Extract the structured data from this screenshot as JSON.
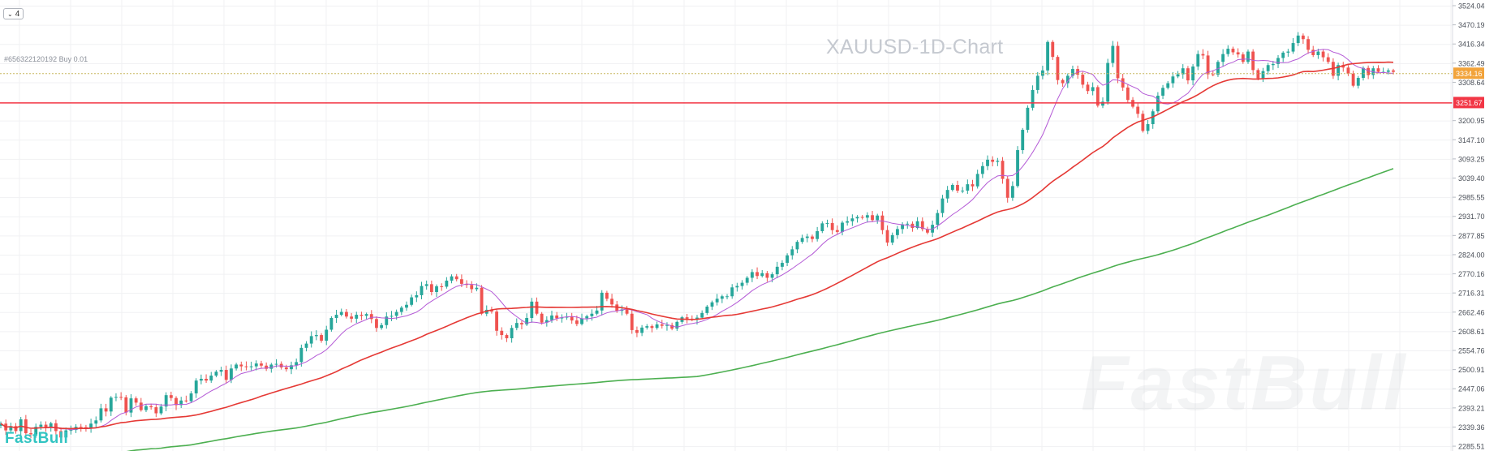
{
  "toolbar": {
    "collapse_count": "4",
    "collapse_icon": "chevron-down-icon"
  },
  "order_line": {
    "label": "#656322120192 Buy 0.01",
    "price": 3334.16,
    "price_label": "3334.16",
    "color": "#f2a33a"
  },
  "alert_line": {
    "price": 3251.67,
    "price_label": "3251.67",
    "color": "#f23645"
  },
  "branding": {
    "logo_text": "FastBull",
    "watermark_text": "FastBull",
    "logo_color": "#32c4c2"
  },
  "chart_data": {
    "type": "candlestick",
    "title": "XAUUSD-1D-Chart",
    "y_axis": {
      "side": "right",
      "ticks": [
        3524.04,
        3470.19,
        3416.34,
        3362.49,
        3308.64,
        3200.95,
        3147.1,
        3093.25,
        3039.4,
        2985.55,
        2931.7,
        2877.85,
        2824.0,
        2770.16,
        2716.31,
        2662.46,
        2608.61,
        2554.76,
        2500.91,
        2447.06,
        2393.21,
        2339.36,
        2285.51
      ],
      "tick_labels": [
        "3524.04",
        "3470.19",
        "3416.34",
        "3362.49",
        "3308.64",
        "3200.95",
        "3147.10",
        "3093.25",
        "3039.40",
        "2985.55",
        "2931.70",
        "2877.85",
        "2824.00",
        "2770.16",
        "2716.31",
        "2662.46",
        "2608.61",
        "2554.76",
        "2500.91",
        "2447.06",
        "2393.21",
        "2339.36",
        "2285.51"
      ],
      "range": [
        2272,
        3540
      ]
    },
    "grid": true,
    "up_color": "#26a69a",
    "down_color": "#ef5350",
    "candle_closes": [
      2349,
      2330,
      2342,
      2328,
      2361,
      2322,
      2319,
      2340,
      2346,
      2339,
      2350,
      2328,
      2310,
      2330,
      2331,
      2340,
      2339,
      2335,
      2349,
      2358,
      2392,
      2383,
      2422,
      2424,
      2423,
      2380,
      2420,
      2408,
      2387,
      2398,
      2395,
      2378,
      2397,
      2429,
      2421,
      2401,
      2414,
      2412,
      2434,
      2470,
      2475,
      2470,
      2484,
      2495,
      2500,
      2472,
      2504,
      2515,
      2510,
      2508,
      2510,
      2518,
      2512,
      2503,
      2515,
      2517,
      2507,
      2502,
      2513,
      2522,
      2562,
      2574,
      2595,
      2598,
      2582,
      2613,
      2646,
      2655,
      2663,
      2650,
      2644,
      2655,
      2652,
      2657,
      2643,
      2618,
      2626,
      2650,
      2652,
      2663,
      2675,
      2683,
      2704,
      2710,
      2736,
      2741,
      2719,
      2735,
      2734,
      2751,
      2763,
      2755,
      2742,
      2739,
      2727,
      2731,
      2658,
      2669,
      2664,
      2610,
      2598,
      2589,
      2618,
      2632,
      2628,
      2646,
      2692,
      2658,
      2633,
      2640,
      2653,
      2645,
      2647,
      2650,
      2639,
      2629,
      2645,
      2651,
      2658,
      2667,
      2717,
      2700,
      2684,
      2666,
      2670,
      2658,
      2612,
      2604,
      2619,
      2623,
      2618,
      2628,
      2624,
      2626,
      2616,
      2635,
      2648,
      2644,
      2641,
      2647,
      2660,
      2678,
      2690,
      2700,
      2707,
      2707,
      2732,
      2736,
      2745,
      2759,
      2775,
      2764,
      2772,
      2759,
      2769,
      2790,
      2801,
      2822,
      2839,
      2860,
      2871,
      2875,
      2868,
      2890,
      2912,
      2913,
      2893,
      2888,
      2914,
      2918,
      2926,
      2930,
      2928,
      2935,
      2921,
      2934,
      2893,
      2858,
      2879,
      2896,
      2909,
      2911,
      2899,
      2918,
      2896,
      2886,
      2908,
      2941,
      2982,
      3006,
      3020,
      3004,
      3004,
      3022,
      3016,
      3051,
      3073,
      3091,
      3085,
      3088,
      3037,
      2984,
      3017,
      3118,
      3175,
      3237,
      3287,
      3327,
      3342,
      3422,
      3380,
      3315,
      3306,
      3327,
      3346,
      3330,
      3302,
      3284,
      3295,
      3243,
      3254,
      3363,
      3411,
      3320,
      3294,
      3259,
      3240,
      3220,
      3172,
      3191,
      3227,
      3271,
      3293,
      3306,
      3325,
      3331,
      3348,
      3314,
      3353,
      3388,
      3384,
      3331,
      3330,
      3366,
      3388,
      3403,
      3393,
      3387,
      3366,
      3395,
      3343,
      3320,
      3340,
      3357,
      3360,
      3377,
      3392,
      3395,
      3419,
      3440,
      3430,
      3400,
      3385,
      3395,
      3379,
      3366,
      3327,
      3357,
      3350,
      3333,
      3299,
      3321,
      3349,
      3329,
      3348,
      3338,
      3338,
      3342,
      3338
    ]
  }
}
